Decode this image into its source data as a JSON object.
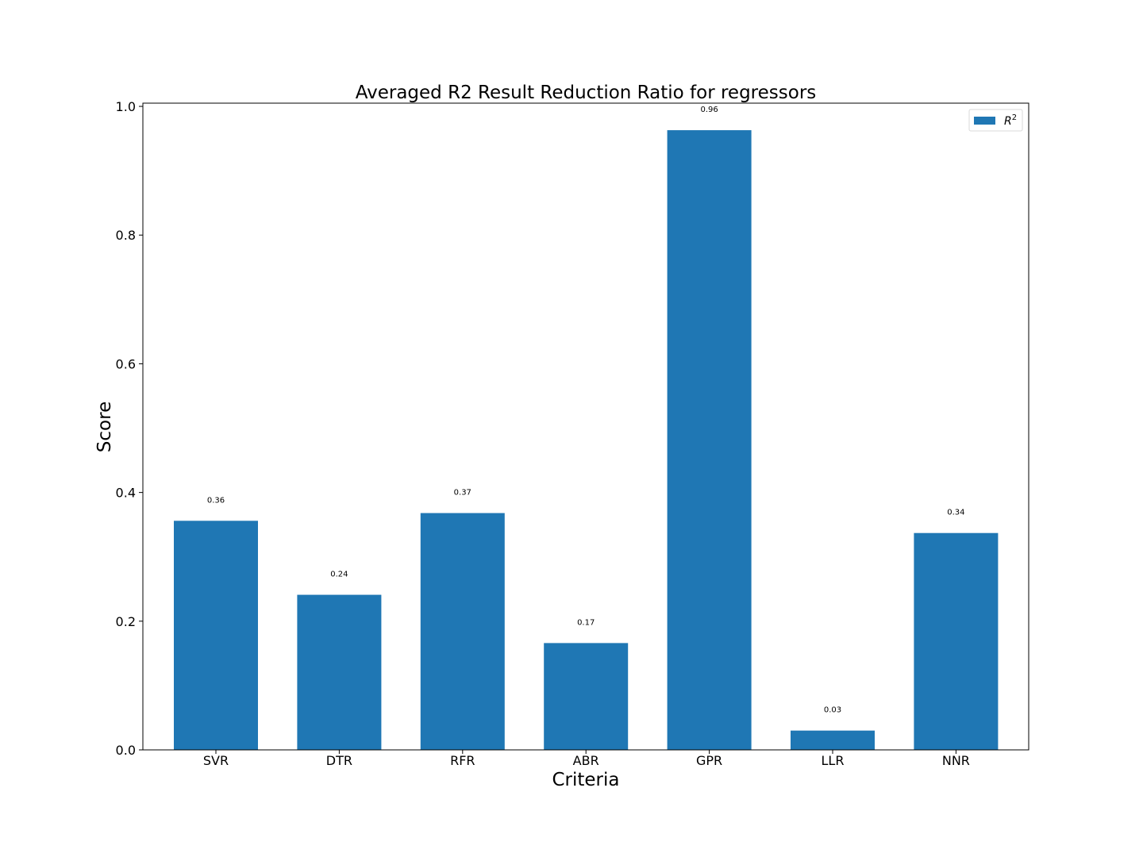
{
  "chart_data": {
    "type": "bar",
    "title": "Averaged R2 Result Reduction Ratio for regressors",
    "xlabel": "Criteria",
    "ylabel": "Score",
    "categories": [
      "SVR",
      "DTR",
      "RFR",
      "ABR",
      "GPR",
      "LLR",
      "NNR"
    ],
    "series": [
      {
        "name": "R",
        "name_superscript": "2",
        "color": "#1f77b4",
        "values": [
          0.356,
          0.241,
          0.368,
          0.166,
          0.963,
          0.03,
          0.337
        ],
        "value_labels": [
          "0.36",
          "0.24",
          "0.37",
          "0.17",
          "0.96",
          "0.03",
          "0.34"
        ]
      }
    ],
    "ylim": [
      0,
      1.005
    ],
    "yticks": [
      0.0,
      0.2,
      0.4,
      0.6,
      0.8,
      1.0
    ],
    "ytick_labels": [
      "0.0",
      "0.2",
      "0.4",
      "0.6",
      "0.8",
      "1.0"
    ],
    "grid": false,
    "legend_position": "top-right"
  }
}
